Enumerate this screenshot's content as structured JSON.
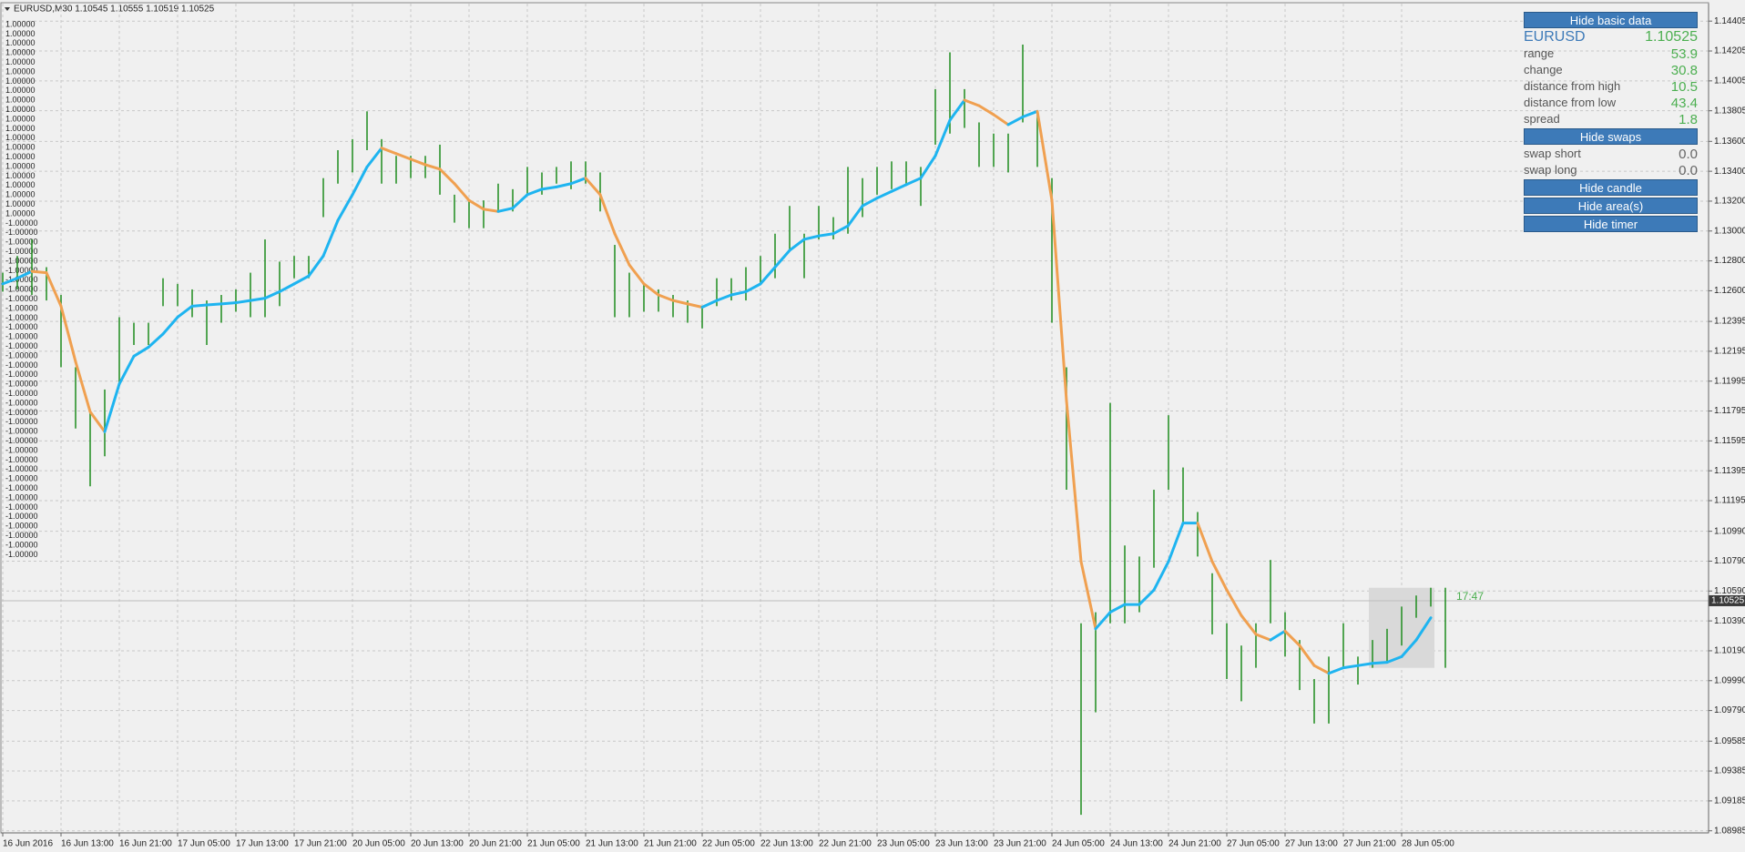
{
  "chart_data": {
    "type": "ohlc",
    "title": "EURUSD,M30  1.10545 1.10555 1.10519 1.10525",
    "categories": [
      "16 Jun 2016",
      "16 Jun 13:00",
      "16 Jun 21:00",
      "17 Jun 05:00",
      "17 Jun 13:00",
      "17 Jun 21:00",
      "20 Jun 05:00",
      "20 Jun 13:00",
      "20 Jun 21:00",
      "21 Jun 05:00",
      "21 Jun 13:00",
      "21 Jun 21:00",
      "22 Jun 05:00",
      "22 Jun 13:00",
      "22 Jun 21:00",
      "23 Jun 05:00",
      "23 Jun 13:00",
      "23 Jun 21:00",
      "24 Jun 05:00",
      "24 Jun 13:00",
      "24 Jun 21:00",
      "27 Jun 05:00",
      "27 Jun 13:00",
      "27 Jun 21:00",
      "28 Jun 05:00"
    ],
    "ylim": [
      1.08971,
      1.14522
    ],
    "yticks": [
      1.14405,
      1.14205,
      1.14005,
      1.13805,
      {
        "value": 1.136,
        "label": "1.13600"
      },
      {
        "value": 1.134,
        "label": "1.13400"
      },
      {
        "value": 1.132,
        "label": "1.13200"
      },
      {
        "value": 1.13,
        "label": "1.13000"
      },
      {
        "value": 1.128,
        "label": "1.12800"
      },
      {
        "value": 1.126,
        "label": "1.12600"
      },
      1.12395,
      1.12195,
      1.11995,
      1.11795,
      1.11595,
      1.11395,
      1.11195,
      {
        "value": 1.1099,
        "label": "1.10990"
      },
      {
        "value": 1.1079,
        "label": "1.10790"
      },
      {
        "value": 1.1059,
        "label": "1.10590"
      },
      {
        "value": 1.1039,
        "label": "1.10390"
      },
      {
        "value": 1.1019,
        "label": "1.10190"
      },
      {
        "value": 1.0999,
        "label": "1.09990"
      },
      {
        "value": 1.0979,
        "label": "1.09790"
      },
      1.09585,
      1.09385,
      1.09185,
      1.08985
    ],
    "grid": true,
    "bars": {
      "color": "#1e8c1e",
      "high": [
        1.12721,
        1.12833,
        1.12944,
        1.12758,
        1.12572,
        1.12088,
        1.1179,
        1.11939,
        1.12423,
        1.12386,
        1.12386,
        1.12684,
        1.12646,
        1.12609,
        1.12535,
        1.12572,
        1.12609,
        1.12721,
        1.12944,
        1.12795,
        1.12833,
        1.12833,
        1.13354,
        1.13541,
        1.13615,
        1.13801,
        1.13615,
        1.13503,
        1.13503,
        1.13503,
        1.13578,
        1.13243,
        1.13205,
        1.13205,
        1.13317,
        1.1328,
        1.13429,
        1.13392,
        1.13429,
        1.13466,
        1.13466,
        1.13392,
        1.12907,
        1.12721,
        1.12646,
        1.12609,
        1.12572,
        1.12535,
        1.12497,
        1.12684,
        1.12684,
        1.12758,
        1.12833,
        1.12982,
        1.13168,
        1.12982,
        1.13168,
        1.13093,
        1.13429,
        1.13354,
        1.13429,
        1.13466,
        1.13466,
        1.13429,
        1.1395,
        1.14196,
        1.1395,
        1.13727,
        1.13652,
        1.13652,
        1.14248,
        1.13801,
        1.13354,
        1.12088,
        1.10374,
        1.10448,
        1.11849,
        1.10895,
        1.10821,
        1.11268,
        1.11767,
        1.11417,
        1.11119,
        1.10709,
        1.10374,
        1.10225,
        1.10374,
        1.10798,
        1.10448,
        1.10262,
        1.10001,
        1.10151,
        1.10374,
        1.10151,
        1.10262,
        1.10337,
        1.10486,
        1.1056,
        1.10612,
        1.10612
      ],
      "low": [
        1.12594,
        1.12609,
        1.12572,
        1.12535,
        1.12088,
        1.11678,
        1.11291,
        1.11492,
        1.11976,
        1.12237,
        1.12237,
        1.12497,
        1.12497,
        1.12423,
        1.12237,
        1.12386,
        1.1246,
        1.12423,
        1.12423,
        1.12497,
        1.12684,
        1.12684,
        1.13093,
        1.13317,
        1.13392,
        1.13541,
        1.13317,
        1.13317,
        1.13354,
        1.13354,
        1.13243,
        1.13056,
        1.13019,
        1.13019,
        1.13131,
        1.13131,
        1.13243,
        1.13243,
        1.13317,
        1.1328,
        1.13317,
        1.13131,
        1.12423,
        1.12423,
        1.1246,
        1.1246,
        1.12423,
        1.12386,
        1.12348,
        1.12497,
        1.12535,
        1.12535,
        1.12646,
        1.12684,
        1.1287,
        1.12684,
        1.12944,
        1.12944,
        1.12982,
        1.13093,
        1.13243,
        1.1328,
        1.13317,
        1.13168,
        1.13578,
        1.13652,
        1.1369,
        1.13429,
        1.13429,
        1.13392,
        1.13727,
        1.13429,
        1.12386,
        1.11268,
        1.09092,
        1.09778,
        1.10374,
        1.10374,
        1.10448,
        1.10746,
        1.11268,
        1.11045,
        1.10821,
        1.103,
        1.10001,
        1.09852,
        1.10076,
        1.10374,
        1.10151,
        1.09927,
        1.09703,
        1.09703,
        1.10076,
        1.09964,
        1.10076,
        1.10113,
        1.10225,
        1.10411,
        1.10486,
        1.10076
      ]
    },
    "ma": {
      "rise_color": "#1eb4f0",
      "fall_color": "#f0a050",
      "values": [
        1.12646,
        1.12684,
        1.1273,
        1.12721,
        1.12497,
        1.12125,
        1.1179,
        1.11656,
        1.11976,
        1.12162,
        1.12222,
        1.12311,
        1.12423,
        1.12497,
        1.12505,
        1.12512,
        1.1252,
        1.12535,
        1.1255,
        1.12594,
        1.12646,
        1.12699,
        1.12833,
        1.13071,
        1.13243,
        1.13429,
        1.13555,
        1.13518,
        1.13481,
        1.13444,
        1.13414,
        1.13317,
        1.13205,
        1.13146,
        1.13131,
        1.13153,
        1.13243,
        1.1328,
        1.13295,
        1.13317,
        1.13354,
        1.13243,
        1.12982,
        1.12773,
        1.12646,
        1.12572,
        1.12535,
        1.12512,
        1.1249,
        1.12535,
        1.12572,
        1.12594,
        1.12646,
        1.12758,
        1.1287,
        1.12944,
        1.12967,
        1.12982,
        1.13034,
        1.13168,
        1.1322,
        1.13265,
        1.1331,
        1.13354,
        1.13503,
        1.13742,
        1.13876,
        1.13839,
        1.13779,
        1.13712,
        1.13764,
        1.13801,
        1.13205,
        1.11864,
        1.10787,
        1.10337,
        1.10448,
        1.105,
        1.105,
        1.10597,
        1.10787,
        1.11045,
        1.11045,
        1.10787,
        1.10597,
        1.10426,
        1.103,
        1.10262,
        1.10322,
        1.10225,
        1.10091,
        1.10039,
        1.10076,
        1.10091,
        1.10106,
        1.10113,
        1.10151,
        1.10262,
        1.10411,
        null
      ]
    },
    "area": {
      "high": 1.10612,
      "low": 1.10076
    },
    "last_price": 1.10525,
    "timer": "17:47",
    "indicator_labels": [
      "1.00000",
      "1.00000",
      "1.00000",
      "1.00000",
      "1.00000",
      "1.00000",
      "1.00000",
      "1.00000",
      "1.00000",
      "1.00000",
      "1.00000",
      "1.00000",
      "1.00000",
      "1.00000",
      "1.00000",
      "1.00000",
      "1.00000",
      "1.00000",
      "1.00000",
      "1.00000",
      "1.00000",
      "-1.00000",
      "-1.00000",
      "-1.00000",
      "-1.00000",
      "-1.00000",
      "-1.00000",
      "-1.00000",
      "-1.00000",
      "-1.00000",
      "-1.00000",
      "-1.00000",
      "-1.00000",
      "-1.00000",
      "-1.00000",
      "-1.00000",
      "-1.00000",
      "-1.00000",
      "-1.00000",
      "-1.00000",
      "-1.00000",
      "-1.00000",
      "-1.00000",
      "-1.00000",
      "-1.00000",
      "-1.00000",
      "-1.00000",
      "-1.00000",
      "-1.00000",
      "-1.00000",
      "-1.00000",
      "-1.00000",
      "-1.00000",
      "-1.00000",
      "-1.00000",
      "-1.00000",
      "-1.00000"
    ]
  },
  "panel": {
    "buttons": [
      "Hide basic data",
      "Hide swaps",
      "Hide candle",
      "Hide area(s)",
      "Hide timer"
    ],
    "symbol": "EURUSD",
    "price": "1.10525",
    "rows": [
      [
        "range",
        "53.9"
      ],
      [
        "change",
        "30.8"
      ],
      [
        "distance from high",
        "10.5"
      ],
      [
        "distance from low",
        "43.4"
      ],
      [
        "spread",
        "1.8"
      ]
    ],
    "swaps": [
      [
        "swap short",
        "0.0"
      ],
      [
        "swap long",
        "0.0"
      ]
    ]
  }
}
